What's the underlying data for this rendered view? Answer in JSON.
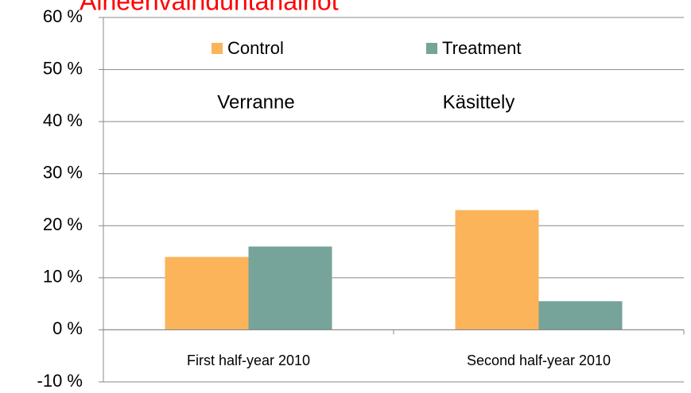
{
  "chart_data": {
    "type": "bar",
    "title": "Aineenvaihduntahäiriöt",
    "categories": [
      "First half-year 2010",
      "Second half-year 2010"
    ],
    "series": [
      {
        "name": "Control",
        "color": "#fbb45a",
        "values": [
          14,
          23
        ]
      },
      {
        "name": "Treatment",
        "color": "#76a39a",
        "values": [
          16,
          5.5
        ]
      }
    ],
    "annotations": [
      "Verranne",
      "Käsittely"
    ],
    "ylim": [
      -10,
      60
    ],
    "yticks": [
      {
        "value": -10,
        "label": "-10 %"
      },
      {
        "value": 0,
        "label": "0 %"
      },
      {
        "value": 10,
        "label": "10 %"
      },
      {
        "value": 20,
        "label": "20 %"
      },
      {
        "value": 30,
        "label": "30 %"
      },
      {
        "value": 40,
        "label": "40 %"
      },
      {
        "value": 50,
        "label": "50 %"
      },
      {
        "value": 60,
        "label": "60 %"
      }
    ],
    "grid": true,
    "legend": "top"
  }
}
